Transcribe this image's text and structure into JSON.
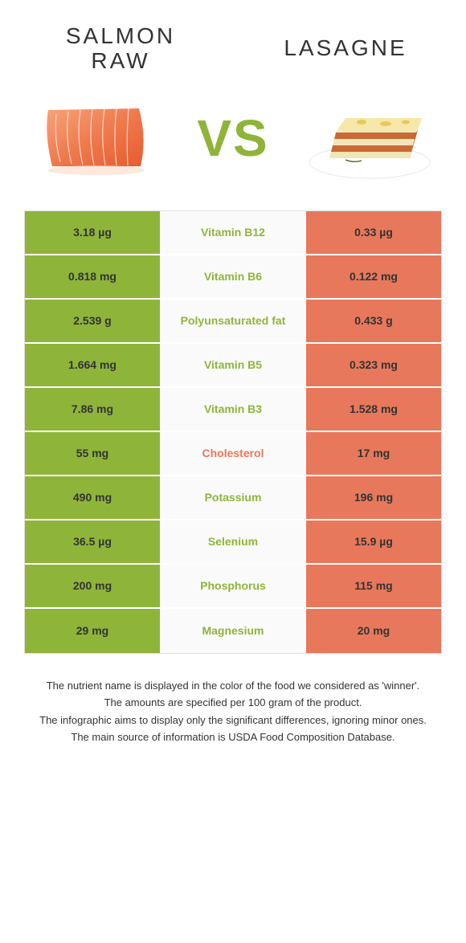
{
  "foods": {
    "left": {
      "name": "SALMON\nRAW",
      "color": "#8fb43a"
    },
    "right": {
      "name": "LASAGNE",
      "color": "#e8785b"
    }
  },
  "vs_text": "VS",
  "vs_color": "#8fb43a",
  "table": {
    "left_bg": "#8fb43a",
    "right_bg": "#e8785b",
    "mid_bg": "#fafafa",
    "rows": [
      {
        "left": "3.18 µg",
        "nutrient": "Vitamin B12",
        "right": "0.33 µg",
        "winner": "left"
      },
      {
        "left": "0.818 mg",
        "nutrient": "Vitamin B6",
        "right": "0.122 mg",
        "winner": "left"
      },
      {
        "left": "2.539 g",
        "nutrient": "Polyunsaturated fat",
        "right": "0.433 g",
        "winner": "left"
      },
      {
        "left": "1.664 mg",
        "nutrient": "Vitamin B5",
        "right": "0.323 mg",
        "winner": "left"
      },
      {
        "left": "7.86 mg",
        "nutrient": "Vitamin B3",
        "right": "1.528 mg",
        "winner": "left"
      },
      {
        "left": "55 mg",
        "nutrient": "Cholesterol",
        "right": "17 mg",
        "winner": "right"
      },
      {
        "left": "490 mg",
        "nutrient": "Potassium",
        "right": "196 mg",
        "winner": "left"
      },
      {
        "left": "36.5 µg",
        "nutrient": "Selenium",
        "right": "15.9 µg",
        "winner": "left"
      },
      {
        "left": "200 mg",
        "nutrient": "Phosphorus",
        "right": "115 mg",
        "winner": "left"
      },
      {
        "left": "29 mg",
        "nutrient": "Magnesium",
        "right": "20 mg",
        "winner": "left"
      }
    ]
  },
  "footer": {
    "line1": "The nutrient name is displayed in the color of the food we considered as 'winner'.",
    "line2": "The amounts are specified per 100 gram of the product.",
    "line3": "The infographic aims to display only the significant differences, ignoring minor ones.",
    "line4": "The main source of information is USDA Food Composition Database."
  }
}
